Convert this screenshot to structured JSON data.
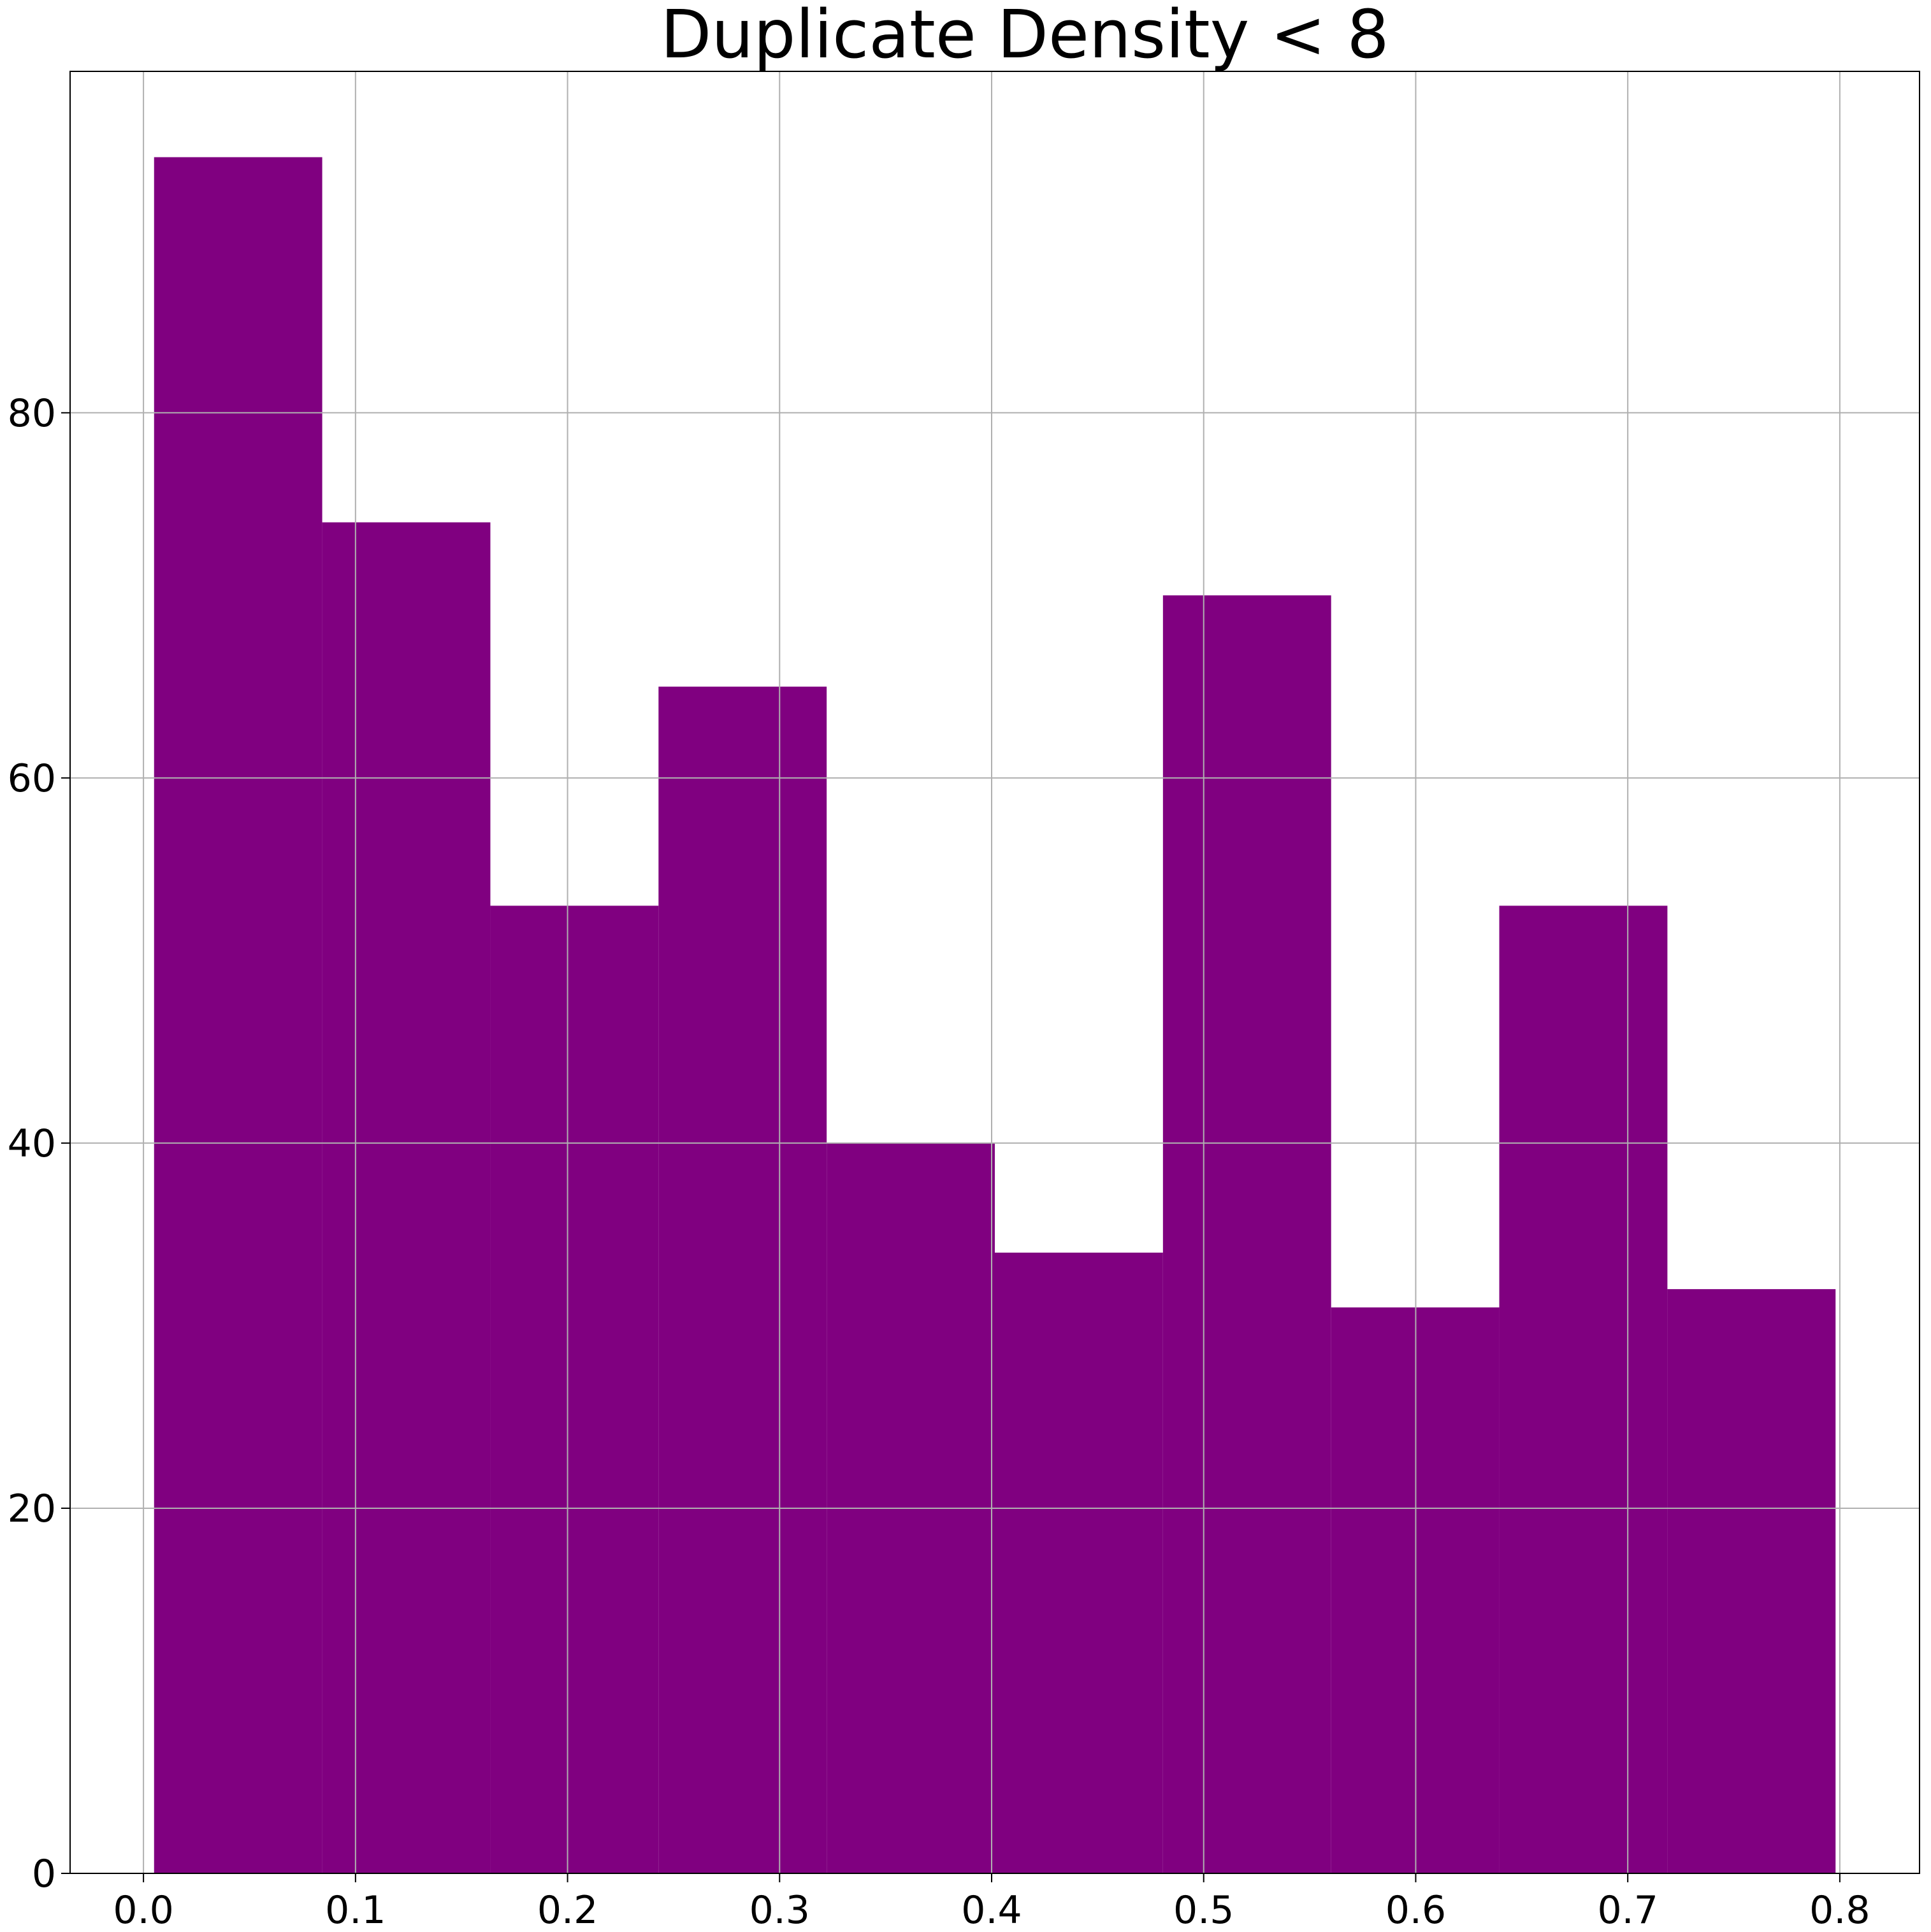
{
  "chart_data": {
    "type": "bar",
    "subtype": "histogram",
    "title": "Duplicate Density < 8",
    "xlabel": "",
    "ylabel": "",
    "bin_edges": [
      0.005,
      0.0843,
      0.1636,
      0.2429,
      0.3222,
      0.4015,
      0.4808,
      0.5601,
      0.6394,
      0.7187,
      0.798
    ],
    "values": [
      94,
      74,
      53,
      65,
      40,
      34,
      70,
      31,
      53,
      32
    ],
    "xlim": [
      -0.0346,
      0.8376
    ],
    "ylim": [
      0,
      98.7
    ],
    "xticks": [
      "0.0",
      "0.1",
      "0.2",
      "0.3",
      "0.4",
      "0.5",
      "0.6",
      "0.7",
      "0.8"
    ],
    "xtick_values": [
      0.0,
      0.1,
      0.2,
      0.3,
      0.4,
      0.5,
      0.6,
      0.7,
      0.8
    ],
    "yticks": [
      "0",
      "20",
      "40",
      "60",
      "80"
    ],
    "ytick_values": [
      0,
      20,
      40,
      60,
      80
    ],
    "grid": true,
    "bar_color": "#800080",
    "grid_color": "#b0b0b0"
  }
}
